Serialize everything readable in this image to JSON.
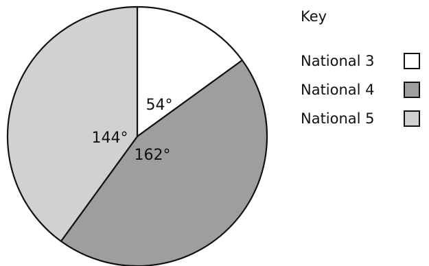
{
  "chart_data": {
    "type": "pie",
    "unit": "°",
    "slices": [
      {
        "label": "National 3",
        "value": 54,
        "display": "54°",
        "color": "#ffffff"
      },
      {
        "label": "National 4",
        "value": 162,
        "display": "162°",
        "color": "#9d9ea0"
      },
      {
        "label": "National 5",
        "value": 144,
        "display": "144°",
        "color": "#d0d1d3"
      }
    ],
    "legend": {
      "title": "Key",
      "placement": "right"
    }
  }
}
